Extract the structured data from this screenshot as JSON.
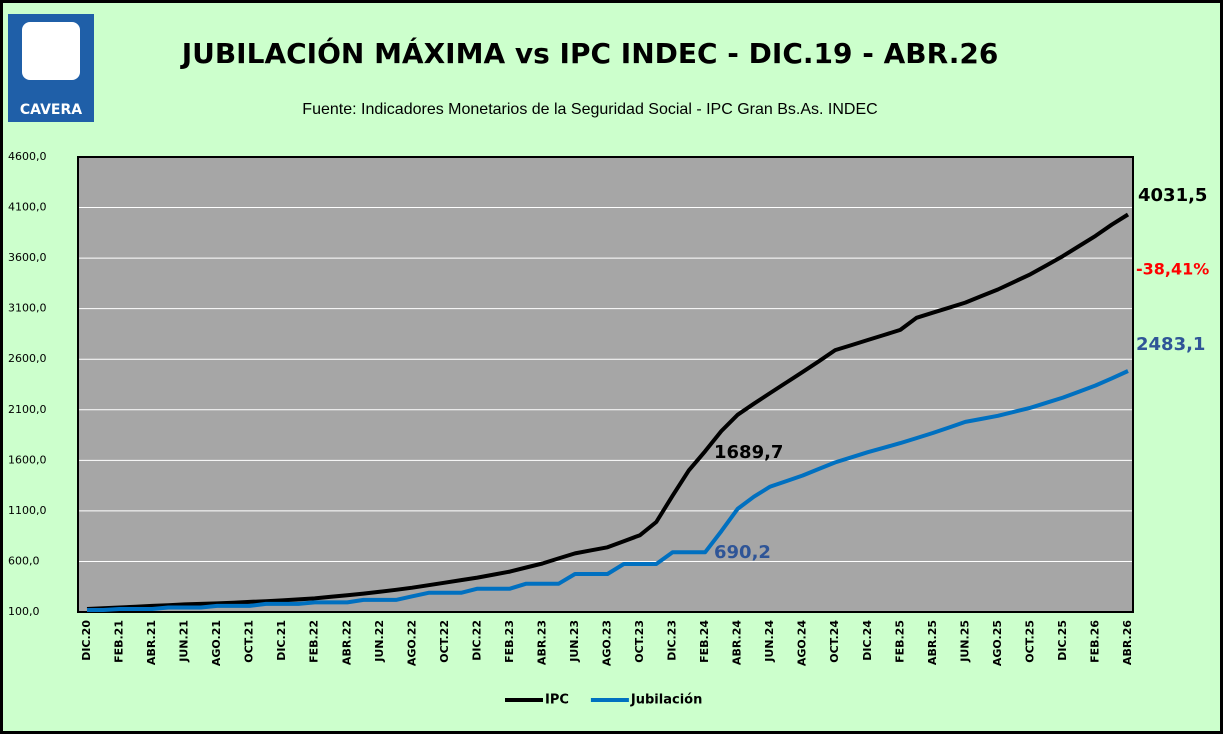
{
  "chart_data": {
    "type": "line",
    "title": "JUBILACIÓN MÁXIMA vs  IPC INDEC - DIC.19 - ABR.26",
    "subtitle": "Fuente:  Indicadores Monetarios de la Seguridad Social - IPC Gran Bs.As. INDEC",
    "logo": "CAVERA",
    "categories": [
      "DIC.20",
      null,
      "FEB.21",
      null,
      "ABR.21",
      null,
      "JUN.21",
      null,
      "AGO.21",
      null,
      "OCT.21",
      null,
      "DIC.21",
      null,
      "FEB.22",
      null,
      "ABR.22",
      null,
      "JUN.22",
      null,
      "AGO.22",
      null,
      "OCT.22",
      null,
      "DIC.22",
      null,
      "FEB.23",
      null,
      "ABR.23",
      null,
      "JUN.23",
      null,
      "AGO.23",
      null,
      "OCT.23",
      null,
      "DIC.23",
      null,
      "FEB.24",
      null,
      "ABR.24",
      null,
      "JUN.24",
      null,
      "AGO.24",
      null,
      "OCT.24",
      null,
      "DIC.24",
      null,
      "FEB.25",
      null,
      "ABR.25",
      null,
      "JUN.25",
      null,
      "AGO.25",
      null,
      "OCT.25",
      null,
      "DIC.25",
      null,
      "FEB.26",
      null,
      "ABR.26"
    ],
    "series": [
      {
        "name": "IPC",
        "color": "#000000",
        "values": [
          130,
          137,
          145,
          152,
          160,
          167,
          175,
          180,
          185,
          192,
          200,
          207,
          215,
          225,
          235,
          250,
          265,
          282,
          300,
          320,
          340,
          365,
          390,
          415,
          440,
          470,
          500,
          540,
          580,
          630,
          680,
          710,
          740,
          800,
          860,
          990,
          1250,
          1500,
          1689.7,
          1890,
          2050,
          2160,
          2266,
          2370,
          2475,
          2580,
          2690,
          2740,
          2790,
          2840,
          2890,
          3010,
          3060,
          3110,
          3160,
          3225,
          3290,
          3365,
          3440,
          3530,
          3620,
          3720,
          3820,
          3930,
          4031.5
        ]
      },
      {
        "name": "Jubilación",
        "color": "#0070c0",
        "values": [
          120,
          120,
          130,
          130,
          130,
          145,
          145,
          145,
          160,
          160,
          160,
          180,
          180,
          180,
          195,
          195,
          195,
          220,
          220,
          220,
          255,
          290,
          290,
          290,
          330,
          330,
          330,
          380,
          380,
          380,
          476,
          476,
          476,
          575,
          575,
          575,
          690.2,
          690.2,
          690.2,
          900,
          1120,
          1240,
          1340,
          1395,
          1450,
          1515,
          1580,
          1630,
          1680,
          1725,
          1770,
          1820,
          1870,
          1925,
          1980,
          2010,
          2040,
          2080,
          2120,
          2170,
          2220,
          2280,
          2340,
          2410,
          2483.1
        ]
      }
    ],
    "ylim": [
      100,
      4600
    ],
    "yticks": [
      {
        "value": 100,
        "label": "100,0"
      },
      {
        "value": 600,
        "label": "600,0"
      },
      {
        "value": 1100,
        "label": "1100,0"
      },
      {
        "value": 1600,
        "label": "1600,0"
      },
      {
        "value": 2100,
        "label": "2100,0"
      },
      {
        "value": 2600,
        "label": "2600,0"
      },
      {
        "value": 3100,
        "label": "3100,0"
      },
      {
        "value": 3600,
        "label": "3600,0"
      },
      {
        "value": 4100,
        "label": "4100,0"
      },
      {
        "value": 4600,
        "label": "4600,0"
      }
    ],
    "grid": true,
    "annotations": [
      {
        "text": "4031,5",
        "color": "#000000"
      },
      {
        "text": "-38,41%",
        "color": "#ff0000"
      },
      {
        "text": "2483,1",
        "color": "#2f5597"
      },
      {
        "text": "1689,7",
        "color": "#000000"
      },
      {
        "text": "690,2",
        "color": "#2f5597"
      }
    ]
  }
}
